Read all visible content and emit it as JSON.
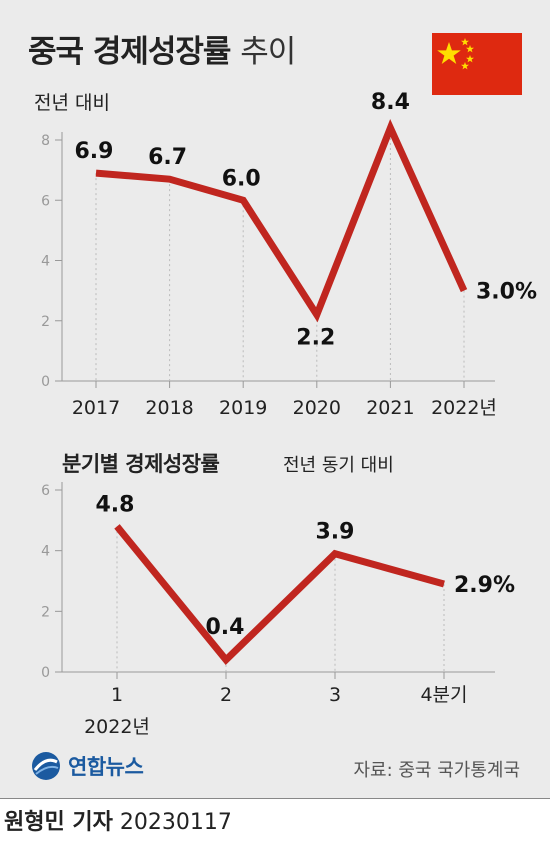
{
  "header": {
    "title_bold": "중국 경제성장률",
    "title_light": "추이",
    "flag_icon": "china-flag",
    "colors": {
      "line": "#c0261f",
      "background": "#ebebeb",
      "flag_red": "#de2910",
      "flag_star": "#ffde00"
    }
  },
  "annual": {
    "subtitle": "전년 대비"
  },
  "quarterly": {
    "subtitle_bold": "분기별 경제성장률",
    "subtitle_note": "전년 동기 대비"
  },
  "chart_data": [
    {
      "type": "line",
      "title": "중국 경제성장률 추이",
      "ylabel": "전년 대비",
      "x": [
        "2017",
        "2018",
        "2019",
        "2020",
        "2021",
        "2022년"
      ],
      "values": [
        6.9,
        6.7,
        6.0,
        2.2,
        8.4,
        3.0
      ],
      "value_labels": [
        "6.9",
        "6.7",
        "6.0",
        "2.2",
        "8.4",
        "3.0%"
      ],
      "yticks": [
        0,
        2,
        4,
        6,
        8
      ],
      "ylim": [
        0,
        8
      ],
      "grid": false
    },
    {
      "type": "line",
      "title": "분기별 경제성장률",
      "ylabel": "전년 동기 대비",
      "x": [
        "1",
        "2",
        "3",
        "4분기"
      ],
      "x_group_label": "2022년",
      "values": [
        4.8,
        0.4,
        3.9,
        2.9
      ],
      "value_labels": [
        "4.8",
        "0.4",
        "3.9",
        "2.9%"
      ],
      "yticks": [
        0,
        2,
        4,
        6
      ],
      "ylim": [
        0,
        6
      ],
      "grid": false
    }
  ],
  "footer": {
    "logo_text": "연합뉴스",
    "source": "자료: 중국 국가통계국",
    "byline_name": "원형민 기자",
    "byline_date": "20230117"
  }
}
